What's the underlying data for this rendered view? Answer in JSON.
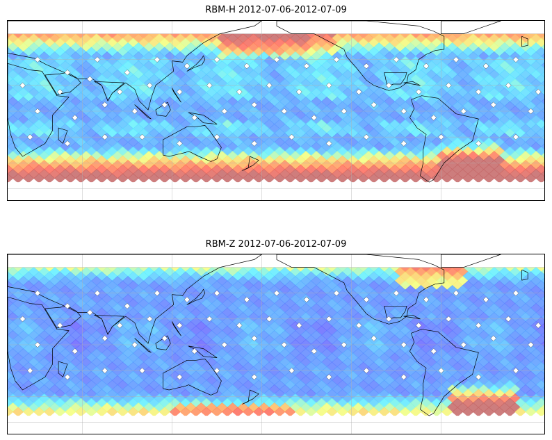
{
  "panels": [
    {
      "id": "top",
      "title": "RBM-H 2012-07-06-2012-07-09",
      "field": "rbm-h",
      "colormap": [
        "#6a5cff",
        "#58a0ff",
        "#5ff0ff",
        "#f4ff7a",
        "#ffb25e",
        "#ff6a5a",
        "#c46666"
      ]
    },
    {
      "id": "bottom",
      "title": "RBM-Z 2012-07-06-2012-07-09",
      "field": "rbm-z",
      "colormap": [
        "#6a5cff",
        "#58a0ff",
        "#5ff0ff",
        "#f4ff7a",
        "#ffb25e",
        "#ff6a5a",
        "#c46666"
      ]
    }
  ],
  "map": {
    "projection": "equirectangular",
    "lon_range": [
      10,
      370
    ],
    "lat_range": [
      -70,
      70
    ],
    "data_lat_range": [
      -55,
      60
    ],
    "gridlines_lon": [
      60,
      120,
      180,
      240,
      300
    ],
    "gridlines_lat": [
      -60,
      -40,
      -20,
      0,
      20,
      40,
      60
    ],
    "gridlines": true,
    "coastlines": true,
    "station_marker": "white-diamond",
    "stations": [
      [
        30,
        40
      ],
      [
        50,
        30
      ],
      [
        70,
        40
      ],
      [
        90,
        30
      ],
      [
        110,
        40
      ],
      [
        130,
        35
      ],
      [
        150,
        40
      ],
      [
        170,
        35
      ],
      [
        190,
        40
      ],
      [
        210,
        35
      ],
      [
        230,
        40
      ],
      [
        250,
        35
      ],
      [
        270,
        40
      ],
      [
        290,
        35
      ],
      [
        310,
        40
      ],
      [
        330,
        35
      ],
      [
        350,
        40
      ],
      [
        20,
        20
      ],
      [
        45,
        15
      ],
      [
        65,
        25
      ],
      [
        85,
        15
      ],
      [
        105,
        20
      ],
      [
        125,
        15
      ],
      [
        145,
        20
      ],
      [
        165,
        15
      ],
      [
        185,
        20
      ],
      [
        205,
        15
      ],
      [
        225,
        20
      ],
      [
        245,
        15
      ],
      [
        265,
        20
      ],
      [
        285,
        15
      ],
      [
        305,
        20
      ],
      [
        325,
        15
      ],
      [
        345,
        20
      ],
      [
        365,
        15
      ],
      [
        30,
        0
      ],
      [
        55,
        -5
      ],
      [
        75,
        5
      ],
      [
        95,
        0
      ],
      [
        115,
        5
      ],
      [
        135,
        -5
      ],
      [
        155,
        0
      ],
      [
        175,
        5
      ],
      [
        195,
        0
      ],
      [
        215,
        -5
      ],
      [
        235,
        0
      ],
      [
        255,
        5
      ],
      [
        275,
        0
      ],
      [
        295,
        -5
      ],
      [
        315,
        0
      ],
      [
        335,
        5
      ],
      [
        360,
        0
      ],
      [
        25,
        -20
      ],
      [
        50,
        -25
      ],
      [
        75,
        -20
      ],
      [
        100,
        -20
      ],
      [
        125,
        -25
      ],
      [
        150,
        -20
      ],
      [
        175,
        -25
      ],
      [
        200,
        -20
      ],
      [
        225,
        -25
      ],
      [
        250,
        -20
      ],
      [
        275,
        -25
      ],
      [
        300,
        -20
      ],
      [
        325,
        -25
      ],
      [
        350,
        -20
      ]
    ]
  }
}
